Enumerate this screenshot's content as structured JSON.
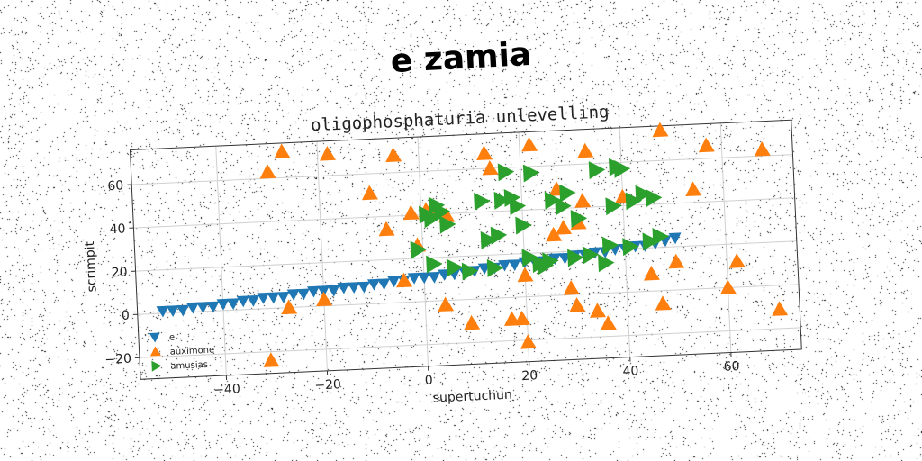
{
  "title": "e zamia",
  "chart_data": {
    "type": "scatter",
    "title": "oligophosphaturia unlevelling",
    "xlabel": "supertuchun",
    "ylabel": "scrimpit",
    "xlim": [
      -57,
      74
    ],
    "ylim": [
      -30,
      76
    ],
    "xticks": [
      -40,
      -20,
      0,
      20,
      40,
      60
    ],
    "yticks": [
      -20,
      0,
      20,
      40,
      60
    ],
    "grid": true,
    "legend_position": "lower-left",
    "series": [
      {
        "name": "e",
        "marker": "triangle-down",
        "color": "#1f77b4",
        "points": [
          [
            -52,
            1
          ],
          [
            -50,
            1
          ],
          [
            -48,
            1
          ],
          [
            -46,
            2
          ],
          [
            -44,
            2
          ],
          [
            -42,
            2
          ],
          [
            -40,
            3
          ],
          [
            -38,
            3
          ],
          [
            -36,
            4
          ],
          [
            -34,
            4
          ],
          [
            -32,
            5
          ],
          [
            -30,
            5
          ],
          [
            -28,
            5
          ],
          [
            -26,
            6
          ],
          [
            -24,
            6
          ],
          [
            -22,
            7
          ],
          [
            -20,
            7
          ],
          [
            -18,
            7
          ],
          [
            -16,
            8
          ],
          [
            -14,
            8
          ],
          [
            -12,
            8
          ],
          [
            -10,
            9
          ],
          [
            -8,
            9
          ],
          [
            -6,
            10
          ],
          [
            -4,
            10
          ],
          [
            -2,
            11
          ],
          [
            0,
            11
          ],
          [
            2,
            11
          ],
          [
            4,
            12
          ],
          [
            6,
            12
          ],
          [
            8,
            13
          ],
          [
            10,
            13
          ],
          [
            12,
            14
          ],
          [
            14,
            14
          ],
          [
            16,
            15
          ],
          [
            18,
            15
          ],
          [
            20,
            16
          ],
          [
            22,
            16
          ],
          [
            24,
            16
          ],
          [
            26,
            17
          ],
          [
            28,
            17
          ],
          [
            30,
            18
          ],
          [
            32,
            18
          ],
          [
            34,
            19
          ],
          [
            36,
            19
          ],
          [
            38,
            20
          ],
          [
            40,
            20
          ],
          [
            42,
            21
          ],
          [
            44,
            21
          ],
          [
            46,
            22
          ],
          [
            48,
            23
          ],
          [
            50,
            24
          ]
        ]
      },
      {
        "name": "auximone",
        "marker": "triangle-up",
        "color": "#ff7f0e",
        "points": [
          [
            -30,
            63
          ],
          [
            -27,
            72
          ],
          [
            -18,
            70
          ],
          [
            -10,
            51
          ],
          [
            -5,
            68
          ],
          [
            -7,
            34
          ],
          [
            -2,
            41
          ],
          [
            -4,
            10
          ],
          [
            -1,
            26
          ],
          [
            1,
            42
          ],
          [
            2,
            42
          ],
          [
            5,
            39
          ],
          [
            4,
            -2
          ],
          [
            9,
            -11
          ],
          [
            13,
            67
          ],
          [
            14,
            60
          ],
          [
            17,
            -10
          ],
          [
            19,
            -10
          ],
          [
            20,
            10
          ],
          [
            22,
            70
          ],
          [
            20,
            -21
          ],
          [
            26,
            28
          ],
          [
            27,
            49
          ],
          [
            28,
            31
          ],
          [
            29,
            3
          ],
          [
            30,
            -5
          ],
          [
            31,
            33
          ],
          [
            32,
            43
          ],
          [
            33,
            66
          ],
          [
            34,
            -8
          ],
          [
            36,
            -14
          ],
          [
            40,
            44
          ],
          [
            45,
            8
          ],
          [
            48,
            74
          ],
          [
            47,
            -6
          ],
          [
            50,
            13
          ],
          [
            54,
            46
          ],
          [
            57,
            66
          ],
          [
            60,
            0
          ],
          [
            62,
            12
          ],
          [
            68,
            63
          ],
          [
            70,
            -11
          ],
          [
            -31,
            -24
          ],
          [
            -27,
            0
          ],
          [
            -20,
            3
          ]
        ]
      },
      {
        "name": "amusias",
        "marker": "triangle-right",
        "color": "#2ca02c",
        "points": [
          [
            -1,
            24
          ],
          [
            1,
            40
          ],
          [
            2,
            38
          ],
          [
            3,
            44
          ],
          [
            4,
            41
          ],
          [
            5,
            35
          ],
          [
            2,
            17
          ],
          [
            6,
            15
          ],
          [
            9,
            13
          ],
          [
            12,
            45
          ],
          [
            13,
            27
          ],
          [
            14,
            14
          ],
          [
            15,
            29
          ],
          [
            16,
            45
          ],
          [
            17,
            58
          ],
          [
            18,
            46
          ],
          [
            19,
            42
          ],
          [
            20,
            33
          ],
          [
            21,
            18
          ],
          [
            22,
            57
          ],
          [
            23,
            15
          ],
          [
            24,
            14
          ],
          [
            25,
            16
          ],
          [
            26,
            44
          ],
          [
            28,
            41
          ],
          [
            29,
            47
          ],
          [
            30,
            17
          ],
          [
            31,
            35
          ],
          [
            33,
            18
          ],
          [
            35,
            57
          ],
          [
            36,
            14
          ],
          [
            37,
            22
          ],
          [
            38,
            40
          ],
          [
            39,
            58
          ],
          [
            40,
            57
          ],
          [
            41,
            21
          ],
          [
            42,
            42
          ],
          [
            44,
            45
          ],
          [
            45,
            23
          ],
          [
            46,
            43
          ],
          [
            47,
            25
          ]
        ]
      }
    ]
  }
}
